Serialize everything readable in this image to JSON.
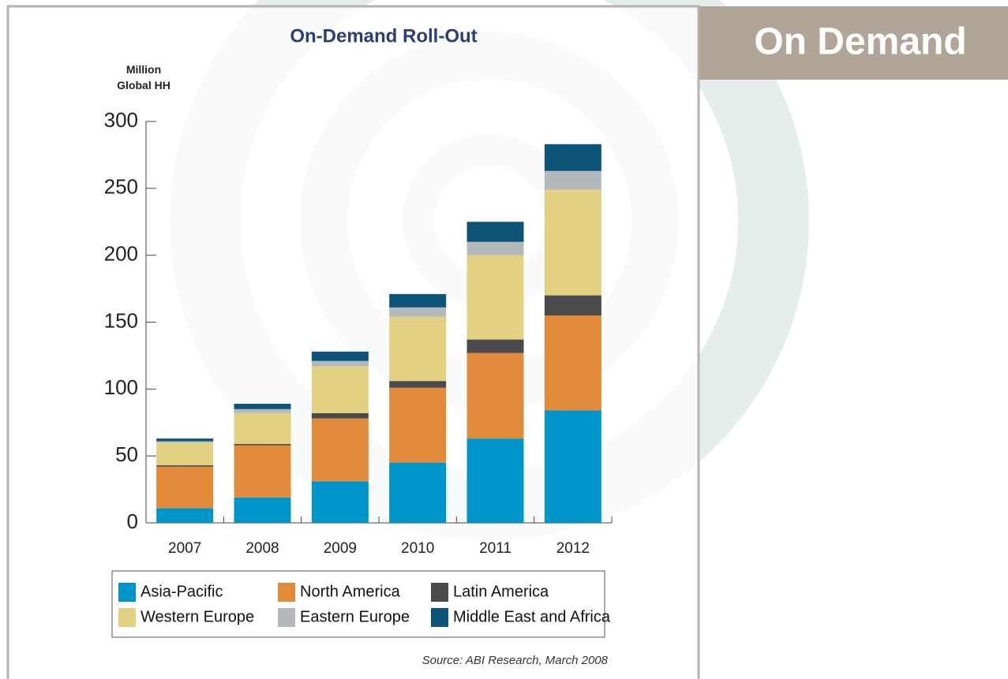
{
  "slide_title": "On Demand",
  "chart_data": {
    "type": "stacked-bar",
    "title": "On-Demand Roll-Out",
    "ylabel": "Million Global HH",
    "source": "Source: ABI Research, March 2008",
    "categories": [
      "2007",
      "2008",
      "2009",
      "2010",
      "2011",
      "2012"
    ],
    "series": [
      {
        "name": "Asia-Pacific",
        "color": "#0095c8",
        "values": [
          11,
          19,
          31,
          45,
          63,
          84
        ]
      },
      {
        "name": "North America",
        "color": "#e08a3a",
        "values": [
          31,
          39,
          47,
          56,
          64,
          71
        ]
      },
      {
        "name": "Latin America",
        "color": "#4a4a4c",
        "values": [
          1,
          1,
          4,
          5,
          10,
          15
        ]
      },
      {
        "name": "Western Europe",
        "color": "#e2d183",
        "values": [
          17,
          23,
          35,
          48,
          63,
          79
        ]
      },
      {
        "name": "Eastern Europe",
        "color": "#b4b9bd",
        "values": [
          1,
          3,
          4,
          7,
          10,
          14
        ]
      },
      {
        "name": "Middle East and Africa",
        "color": "#0c5478",
        "values": [
          2,
          4,
          7,
          10,
          15,
          20
        ]
      }
    ],
    "ylim": [
      0,
      300
    ],
    "yticks": [
      0,
      50,
      100,
      150,
      200,
      250,
      300
    ],
    "legend": "bottom"
  }
}
